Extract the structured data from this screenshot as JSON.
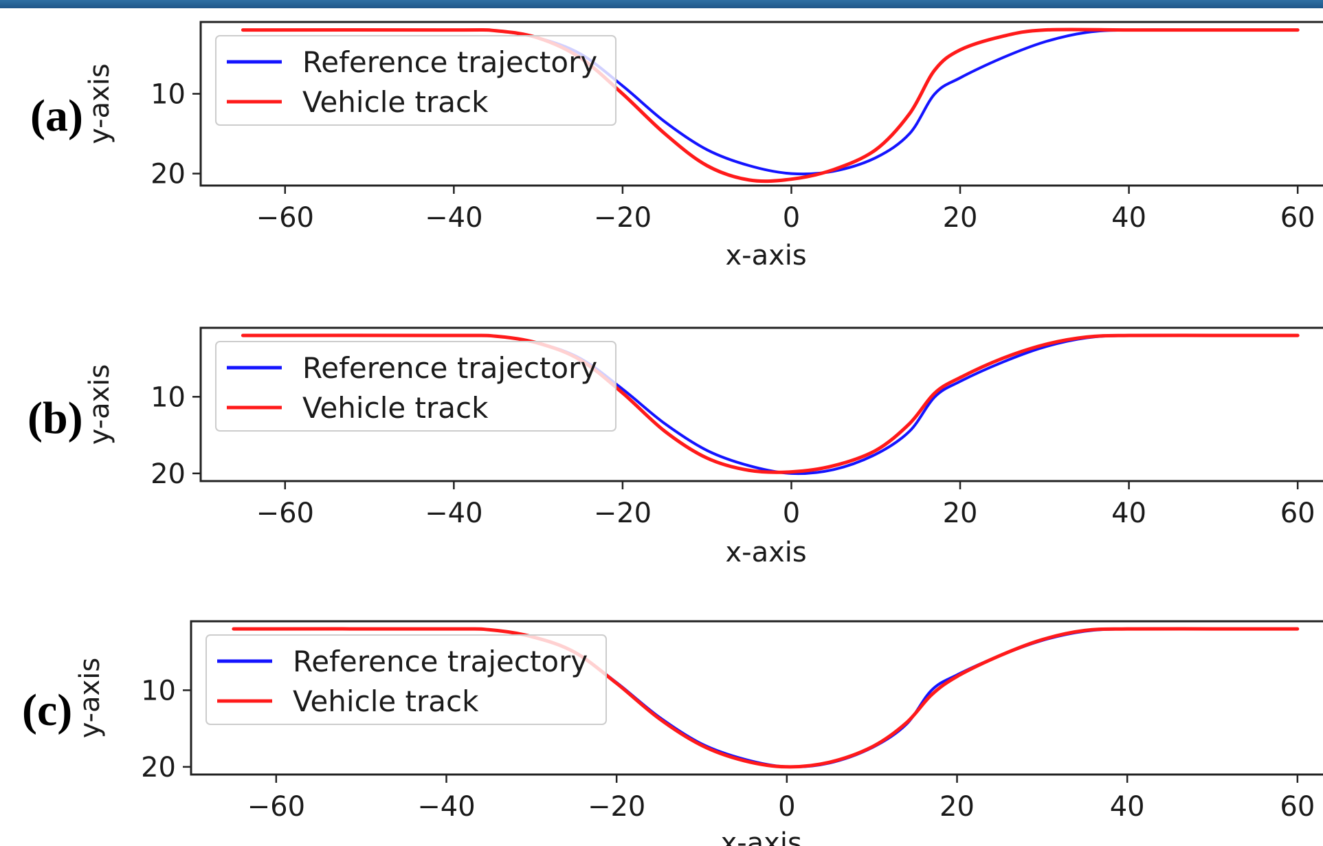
{
  "colors": {
    "reference": "#1414ff",
    "vehicle": "#ff1a1a",
    "axes": "#222222",
    "header": "#2e6fa3"
  },
  "chart_data": [
    {
      "type": "line",
      "panel_label": "(a)",
      "xlabel": "x-axis",
      "ylabel": "y-axis",
      "xlim": [
        -70,
        63
      ],
      "ylim": [
        21.5,
        1
      ],
      "y_inverted": true,
      "x_ticks": [
        -60,
        -40,
        -20,
        0,
        20,
        40,
        60
      ],
      "x_tick_labels": [
        "−60",
        "−40",
        "−20",
        "0",
        "20",
        "40",
        "60"
      ],
      "y_ticks": [
        10,
        20
      ],
      "y_tick_labels": [
        "10",
        "20"
      ],
      "legend": {
        "position": "upper-left",
        "entries": [
          "Reference trajectory",
          "Vehicle track"
        ]
      },
      "series": [
        {
          "name": "Reference trajectory",
          "color": "blue",
          "points": [
            [
              -65,
              2
            ],
            [
              -40,
              2
            ],
            [
              -35,
              2.1
            ],
            [
              -30,
              3
            ],
            [
              -25,
              5
            ],
            [
              -20,
              9
            ],
            [
              -15,
              13.5
            ],
            [
              -10,
              17
            ],
            [
              -5,
              19
            ],
            [
              0,
              20
            ],
            [
              5,
              19.7
            ],
            [
              10,
              18
            ],
            [
              14,
              15
            ],
            [
              17,
              10
            ],
            [
              20,
              8
            ],
            [
              25,
              5.5
            ],
            [
              30,
              3.5
            ],
            [
              35,
              2.3
            ],
            [
              40,
              2
            ],
            [
              50,
              2
            ],
            [
              60,
              2
            ]
          ]
        },
        {
          "name": "Vehicle track",
          "color": "red",
          "points": [
            [
              -65,
              2
            ],
            [
              -40,
              2
            ],
            [
              -35,
              2.1
            ],
            [
              -30,
              3
            ],
            [
              -25,
              5.5
            ],
            [
              -20,
              10
            ],
            [
              -15,
              15
            ],
            [
              -10,
              19
            ],
            [
              -5,
              20.8
            ],
            [
              0,
              20.7
            ],
            [
              5,
              19.5
            ],
            [
              10,
              17
            ],
            [
              14,
              12.5
            ],
            [
              17,
              7
            ],
            [
              20,
              4.5
            ],
            [
              25,
              2.8
            ],
            [
              30,
              2
            ],
            [
              40,
              2
            ],
            [
              50,
              2
            ],
            [
              60,
              2
            ]
          ]
        }
      ]
    },
    {
      "type": "line",
      "panel_label": "(b)",
      "xlabel": "x-axis",
      "ylabel": "y-axis",
      "xlim": [
        -70,
        63
      ],
      "ylim": [
        21,
        1
      ],
      "y_inverted": true,
      "x_ticks": [
        -60,
        -40,
        -20,
        0,
        20,
        40,
        60
      ],
      "x_tick_labels": [
        "−60",
        "−40",
        "−20",
        "0",
        "20",
        "40",
        "60"
      ],
      "y_ticks": [
        10,
        20
      ],
      "y_tick_labels": [
        "10",
        "20"
      ],
      "legend": {
        "position": "upper-left",
        "entries": [
          "Reference trajectory",
          "Vehicle track"
        ]
      },
      "series": [
        {
          "name": "Reference trajectory",
          "color": "blue",
          "points": [
            [
              -65,
              2
            ],
            [
              -40,
              2
            ],
            [
              -35,
              2.1
            ],
            [
              -30,
              3
            ],
            [
              -25,
              5
            ],
            [
              -20,
              9
            ],
            [
              -15,
              13.5
            ],
            [
              -10,
              17
            ],
            [
              -5,
              19
            ],
            [
              0,
              20
            ],
            [
              5,
              19.5
            ],
            [
              10,
              17.5
            ],
            [
              14,
              14.5
            ],
            [
              17,
              10
            ],
            [
              20,
              8
            ],
            [
              25,
              5.5
            ],
            [
              30,
              3.5
            ],
            [
              35,
              2.3
            ],
            [
              40,
              2
            ],
            [
              50,
              2
            ],
            [
              60,
              2
            ]
          ]
        },
        {
          "name": "Vehicle track",
          "color": "red",
          "points": [
            [
              -65,
              2
            ],
            [
              -40,
              2
            ],
            [
              -35,
              2.1
            ],
            [
              -30,
              3
            ],
            [
              -25,
              5.2
            ],
            [
              -20,
              9.5
            ],
            [
              -15,
              14.5
            ],
            [
              -10,
              18
            ],
            [
              -5,
              19.6
            ],
            [
              0,
              19.8
            ],
            [
              5,
              19
            ],
            [
              10,
              17
            ],
            [
              14,
              13.5
            ],
            [
              17,
              9.5
            ],
            [
              20,
              7.5
            ],
            [
              25,
              5
            ],
            [
              30,
              3.2
            ],
            [
              35,
              2.2
            ],
            [
              40,
              2
            ],
            [
              50,
              2
            ],
            [
              60,
              2
            ]
          ]
        }
      ]
    },
    {
      "type": "line",
      "panel_label": "(c)",
      "xlabel": "x-axis",
      "ylabel": "y-axis",
      "xlim": [
        -70,
        63
      ],
      "ylim": [
        21,
        1
      ],
      "y_inverted": true,
      "x_ticks": [
        -60,
        -40,
        -20,
        0,
        20,
        40,
        60
      ],
      "x_tick_labels": [
        "−60",
        "−40",
        "−20",
        "0",
        "20",
        "40",
        "60"
      ],
      "y_ticks": [
        10,
        20
      ],
      "y_tick_labels": [
        "10",
        "20"
      ],
      "legend": {
        "position": "upper-left",
        "entries": [
          "Reference trajectory",
          "Vehicle track"
        ]
      },
      "series": [
        {
          "name": "Reference trajectory",
          "color": "blue",
          "points": [
            [
              -65,
              2
            ],
            [
              -40,
              2
            ],
            [
              -35,
              2.1
            ],
            [
              -30,
              3
            ],
            [
              -25,
              5
            ],
            [
              -20,
              9
            ],
            [
              -15,
              13.5
            ],
            [
              -10,
              17
            ],
            [
              -5,
              19
            ],
            [
              0,
              20
            ],
            [
              5,
              19.5
            ],
            [
              10,
              17.5
            ],
            [
              14,
              14.5
            ],
            [
              17,
              10
            ],
            [
              20,
              8
            ],
            [
              25,
              5.5
            ],
            [
              30,
              3.5
            ],
            [
              35,
              2.3
            ],
            [
              40,
              2
            ],
            [
              50,
              2
            ],
            [
              60,
              2
            ]
          ]
        },
        {
          "name": "Vehicle track",
          "color": "red",
          "points": [
            [
              -65,
              2
            ],
            [
              -40,
              2
            ],
            [
              -35,
              2.1
            ],
            [
              -30,
              3
            ],
            [
              -25,
              5
            ],
            [
              -20,
              9.1
            ],
            [
              -15,
              13.7
            ],
            [
              -10,
              17.2
            ],
            [
              -5,
              19.2
            ],
            [
              0,
              20
            ],
            [
              5,
              19.4
            ],
            [
              10,
              17.4
            ],
            [
              14,
              14.3
            ],
            [
              17,
              10.6
            ],
            [
              20,
              8.2
            ],
            [
              25,
              5.5
            ],
            [
              30,
              3.4
            ],
            [
              35,
              2.2
            ],
            [
              40,
              2
            ],
            [
              50,
              2
            ],
            [
              60,
              2
            ]
          ]
        }
      ]
    }
  ]
}
